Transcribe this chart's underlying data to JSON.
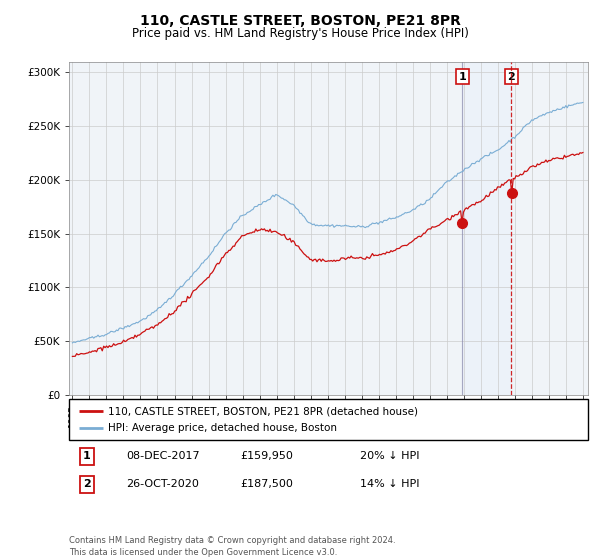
{
  "title": "110, CASTLE STREET, BOSTON, PE21 8PR",
  "subtitle": "Price paid vs. HM Land Registry's House Price Index (HPI)",
  "ylim": [
    0,
    310000
  ],
  "yticks": [
    0,
    50000,
    100000,
    150000,
    200000,
    250000,
    300000
  ],
  "ytick_labels": [
    "£0",
    "£50K",
    "£100K",
    "£150K",
    "£200K",
    "£250K",
    "£300K"
  ],
  "hpi_color": "#7aadd4",
  "price_color": "#cc1111",
  "sale1_date": "08-DEC-2017",
  "sale1_price": 159950,
  "sale1_year": 2017.92,
  "sale1_pct": "20% ↓ HPI",
  "sale2_date": "26-OCT-2020",
  "sale2_price": 187500,
  "sale2_year": 2020.79,
  "sale2_pct": "14% ↓ HPI",
  "legend1": "110, CASTLE STREET, BOSTON, PE21 8PR (detached house)",
  "legend2": "HPI: Average price, detached house, Boston",
  "footer": "Contains HM Land Registry data © Crown copyright and database right 2024.\nThis data is licensed under the Open Government Licence v3.0.",
  "grid_color": "#cccccc",
  "shade_color": "#ddeeff",
  "hpi_knots": [
    1995,
    1996,
    1997,
    1998,
    1999,
    2000,
    2001,
    2002,
    2003,
    2004,
    2005,
    2006,
    2007,
    2008,
    2009,
    2010,
    2011,
    2012,
    2013,
    2014,
    2015,
    2016,
    2017,
    2018,
    2019,
    2020,
    2021,
    2022,
    2023,
    2024,
    2025
  ],
  "hpi_values": [
    48000,
    52000,
    57000,
    63000,
    70000,
    80000,
    95000,
    112000,
    130000,
    152000,
    168000,
    178000,
    188000,
    178000,
    160000,
    158000,
    158000,
    157000,
    160000,
    165000,
    172000,
    182000,
    198000,
    210000,
    220000,
    228000,
    240000,
    255000,
    262000,
    268000,
    272000
  ],
  "price_knots": [
    1995,
    1996,
    1997,
    1998,
    1999,
    2000,
    2001,
    2002,
    2003,
    2004,
    2005,
    2006,
    2007,
    2008,
    2009,
    2010,
    2011,
    2012,
    2013,
    2014,
    2015,
    2016,
    2017,
    2018,
    2019,
    2020,
    2021,
    2022,
    2023,
    2024,
    2025
  ],
  "price_values": [
    36000,
    40000,
    45000,
    50000,
    57000,
    65000,
    78000,
    93000,
    110000,
    130000,
    147000,
    153000,
    150000,
    140000,
    123000,
    120000,
    122000,
    122000,
    125000,
    130000,
    138000,
    148000,
    158000,
    168000,
    175000,
    186000,
    195000,
    205000,
    210000,
    215000,
    218000
  ]
}
